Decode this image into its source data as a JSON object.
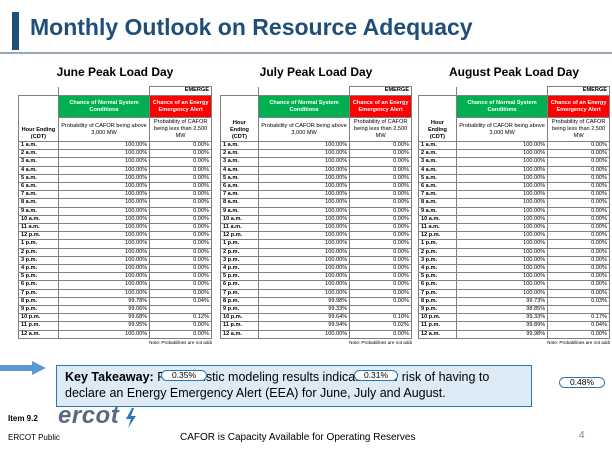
{
  "slide": {
    "title": "Monthly Outlook on Resource Adequacy",
    "item": "Item 9.2",
    "public": "ERCOT Public",
    "logo_text": "ercot",
    "footer_note": "CAFOR is Capacity Available for Operating Reserves",
    "page_number": "4",
    "takeaway_bold": "Key Takeaway:",
    "takeaway_text": " Probabilistic modeling results indicate a low risk of having to declare an Energy Emergency Alert (EEA) for June, July and August.",
    "colors": {
      "title": "#1f4e79",
      "normal_header": "#00b050",
      "eea_header": "#ff0000",
      "takeaway_bg": "#ddebf7",
      "highlight": "#2e75b6"
    }
  },
  "headers": {
    "normal_conditions": "Chance of Normal System Conditions",
    "energy_alert": "Chance of an Energy Emergency Alert",
    "emergency_cut": "EMERGE",
    "hour_ending": "Hour Ending (CDT)",
    "prob_above": "Probability of CAFOR being above 3,000 MW",
    "prob_below": "Probability of CAFOR being less than 2,500 MW",
    "note": "Note: Probabilities are not addi"
  },
  "tables": [
    {
      "title": "June Peak Load Day",
      "highlight": "0.35%",
      "rows": [
        {
          "hour": "1 a.m.",
          "normal": "100.00%",
          "eea": "0.00%"
        },
        {
          "hour": "2 a.m.",
          "normal": "100.00%",
          "eea": "0.00%"
        },
        {
          "hour": "3 a.m.",
          "normal": "100.00%",
          "eea": "0.00%"
        },
        {
          "hour": "4 a.m.",
          "normal": "100.00%",
          "eea": "0.00%"
        },
        {
          "hour": "5 a.m.",
          "normal": "100.00%",
          "eea": "0.00%"
        },
        {
          "hour": "6 a.m.",
          "normal": "100.00%",
          "eea": "0.00%"
        },
        {
          "hour": "7 a.m.",
          "normal": "100.00%",
          "eea": "0.00%"
        },
        {
          "hour": "8 a.m.",
          "normal": "100.00%",
          "eea": "0.00%"
        },
        {
          "hour": "9 a.m.",
          "normal": "100.00%",
          "eea": "0.00%"
        },
        {
          "hour": "10 a.m.",
          "normal": "100.00%",
          "eea": "0.00%"
        },
        {
          "hour": "11 a.m.",
          "normal": "100.00%",
          "eea": "0.00%"
        },
        {
          "hour": "12 p.m.",
          "normal": "100.00%",
          "eea": "0.00%"
        },
        {
          "hour": "1 p.m.",
          "normal": "100.00%",
          "eea": "0.00%"
        },
        {
          "hour": "2 p.m.",
          "normal": "100.00%",
          "eea": "0.00%"
        },
        {
          "hour": "3 p.m.",
          "normal": "100.00%",
          "eea": "0.00%"
        },
        {
          "hour": "4 p.m.",
          "normal": "100.00%",
          "eea": "0.00%"
        },
        {
          "hour": "5 p.m.",
          "normal": "100.00%",
          "eea": "0.00%"
        },
        {
          "hour": "6 p.m.",
          "normal": "100.00%",
          "eea": "0.00%"
        },
        {
          "hour": "7 p.m.",
          "normal": "100.00%",
          "eea": "0.00%"
        },
        {
          "hour": "8 p.m.",
          "normal": "99.78%",
          "eea": "0.04%"
        },
        {
          "hour": "9 p.m.",
          "normal": "99.06%",
          "eea": ""
        },
        {
          "hour": "10 p.m.",
          "normal": "99.68%",
          "eea": "0.12%"
        },
        {
          "hour": "11 p.m.",
          "normal": "99.95%",
          "eea": "0.00%"
        },
        {
          "hour": "12 a.m.",
          "normal": "100.00%",
          "eea": "0.00%"
        }
      ]
    },
    {
      "title": "July Peak Load Day",
      "highlight": "0.31%",
      "rows": [
        {
          "hour": "1 a.m.",
          "normal": "100.00%",
          "eea": "0.00%"
        },
        {
          "hour": "2 a.m.",
          "normal": "100.00%",
          "eea": "0.00%"
        },
        {
          "hour": "3 a.m.",
          "normal": "100.00%",
          "eea": "0.00%"
        },
        {
          "hour": "4 a.m.",
          "normal": "100.00%",
          "eea": "0.00%"
        },
        {
          "hour": "5 a.m.",
          "normal": "100.00%",
          "eea": "0.00%"
        },
        {
          "hour": "6 a.m.",
          "normal": "100.00%",
          "eea": "0.00%"
        },
        {
          "hour": "7 a.m.",
          "normal": "100.00%",
          "eea": "0.00%"
        },
        {
          "hour": "8 a.m.",
          "normal": "100.00%",
          "eea": "0.00%"
        },
        {
          "hour": "9 a.m.",
          "normal": "100.00%",
          "eea": "0.00%"
        },
        {
          "hour": "10 a.m.",
          "normal": "100.00%",
          "eea": "0.00%"
        },
        {
          "hour": "11 a.m.",
          "normal": "100.00%",
          "eea": "0.00%"
        },
        {
          "hour": "12 p.m.",
          "normal": "100.00%",
          "eea": "0.00%"
        },
        {
          "hour": "1 p.m.",
          "normal": "100.00%",
          "eea": "0.00%"
        },
        {
          "hour": "2 p.m.",
          "normal": "100.00%",
          "eea": "0.00%"
        },
        {
          "hour": "3 p.m.",
          "normal": "100.00%",
          "eea": "0.00%"
        },
        {
          "hour": "4 p.m.",
          "normal": "100.00%",
          "eea": "0.00%"
        },
        {
          "hour": "5 p.m.",
          "normal": "100.00%",
          "eea": "0.00%"
        },
        {
          "hour": "6 p.m.",
          "normal": "100.00%",
          "eea": "0.00%"
        },
        {
          "hour": "7 p.m.",
          "normal": "100.00%",
          "eea": "0.00%"
        },
        {
          "hour": "8 p.m.",
          "normal": "99.98%",
          "eea": "0.00%"
        },
        {
          "hour": "9 p.m.",
          "normal": "99.33%",
          "eea": ""
        },
        {
          "hour": "10 p.m.",
          "normal": "99.64%",
          "eea": "0.10%"
        },
        {
          "hour": "11 p.m.",
          "normal": "99.94%",
          "eea": "0.02%"
        },
        {
          "hour": "12 a.m.",
          "normal": "100.00%",
          "eea": "0.00%"
        }
      ]
    },
    {
      "title": "August Peak Load Day",
      "highlight": "0.48%",
      "rows": [
        {
          "hour": "1 a.m.",
          "normal": "100.00%",
          "eea": "0.00%"
        },
        {
          "hour": "2 a.m.",
          "normal": "100.00%",
          "eea": "0.00%"
        },
        {
          "hour": "3 a.m.",
          "normal": "100.00%",
          "eea": "0.00%"
        },
        {
          "hour": "4 a.m.",
          "normal": "100.00%",
          "eea": "0.00%"
        },
        {
          "hour": "5 a.m.",
          "normal": "100.00%",
          "eea": "0.00%"
        },
        {
          "hour": "6 a.m.",
          "normal": "100.00%",
          "eea": "0.00%"
        },
        {
          "hour": "7 a.m.",
          "normal": "100.00%",
          "eea": "0.00%"
        },
        {
          "hour": "8 a.m.",
          "normal": "100.00%",
          "eea": "0.00%"
        },
        {
          "hour": "9 a.m.",
          "normal": "100.00%",
          "eea": "0.00%"
        },
        {
          "hour": "10 a.m.",
          "normal": "100.00%",
          "eea": "0.00%"
        },
        {
          "hour": "11 a.m.",
          "normal": "100.00%",
          "eea": "0.00%"
        },
        {
          "hour": "12 p.m.",
          "normal": "100.00%",
          "eea": "0.00%"
        },
        {
          "hour": "1 p.m.",
          "normal": "100.00%",
          "eea": "0.00%"
        },
        {
          "hour": "2 p.m.",
          "normal": "100.00%",
          "eea": "0.00%"
        },
        {
          "hour": "3 p.m.",
          "normal": "100.00%",
          "eea": "0.00%"
        },
        {
          "hour": "4 p.m.",
          "normal": "100.00%",
          "eea": "0.00%"
        },
        {
          "hour": "5 p.m.",
          "normal": "100.00%",
          "eea": "0.00%"
        },
        {
          "hour": "6 p.m.",
          "normal": "100.00%",
          "eea": "0.00%"
        },
        {
          "hour": "7 p.m.",
          "normal": "100.00%",
          "eea": "0.00%"
        },
        {
          "hour": "8 p.m.",
          "normal": "99.73%",
          "eea": "0.03%"
        },
        {
          "hour": "9 p.m.",
          "normal": "98.85%",
          "eea": ""
        },
        {
          "hour": "10 p.m.",
          "normal": "99.33%",
          "eea": "0.17%"
        },
        {
          "hour": "11 p.m.",
          "normal": "99.89%",
          "eea": "0.04%"
        },
        {
          "hour": "12 a.m.",
          "normal": "99.98%",
          "eea": "0.00%"
        }
      ]
    }
  ]
}
